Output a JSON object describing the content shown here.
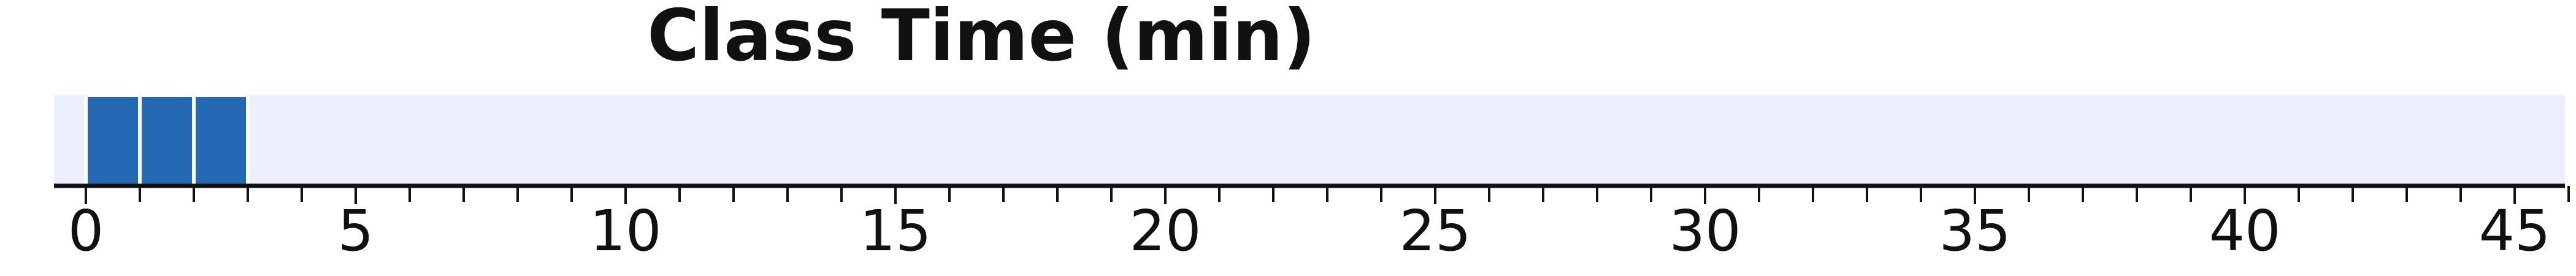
{
  "chart_data": {
    "type": "bar",
    "title": "Class Time (min)",
    "xlabel": "",
    "ylabel": "",
    "orientation": "horizontal",
    "xlim": [
      -0.5,
      46
    ],
    "x_ticks_major": [
      0,
      5,
      10,
      15,
      20,
      25,
      30,
      35,
      40,
      45
    ],
    "x_ticks_minor_step": 1,
    "segments": [
      {
        "start": 0,
        "end": 1
      },
      {
        "start": 1,
        "end": 2
      },
      {
        "start": 2,
        "end": 3
      }
    ],
    "grid": false,
    "legend": "none",
    "colors": {
      "bar": "#2469b3",
      "band": "#ebf0fc",
      "axis": "#111111",
      "text": "#111111",
      "separator": "#ffffff"
    }
  }
}
